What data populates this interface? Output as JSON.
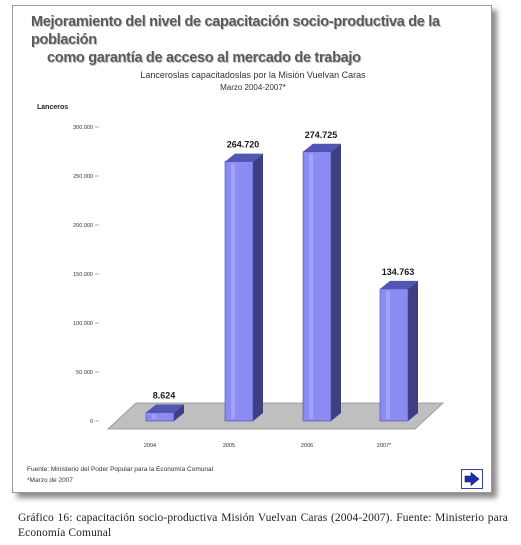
{
  "figure": {
    "title_line1": "Mejoramiento del nivel de capacitación socio-productiva de la   población",
    "title_line2": "como garantía de acceso al mercado de trabajo",
    "source_line1": "Fuente: Ministerio del Poder Popular para la Economía Comunal",
    "source_line2": "*Marzo de 2007",
    "next_icon": "right-arrow-icon",
    "caption": "Gráfico 16: capacitación socio-productiva Misión Vuelvan Caras (2004-2007). Fuente: Ministerio para Economía Comunal"
  },
  "chart_data": {
    "type": "bar",
    "title": "Lanceroslas capacitadoslas por la Misión Vuelvan Caras",
    "subtitle": "Marzo 2004-2007*",
    "ylabel": "Lanceros",
    "categories": [
      "2004",
      "2005",
      "2006",
      "2007*"
    ],
    "values": [
      8624,
      264720,
      274725,
      134763
    ],
    "value_labels": [
      "8.624",
      "264.720",
      "274.725",
      "134.763"
    ],
    "yticks": [
      0,
      50000,
      100000,
      150000,
      200000,
      250000,
      300000
    ],
    "ytick_labels": [
      "0",
      "50.000",
      "100.000",
      "150.000",
      "200.000",
      "250.000",
      "300.000"
    ],
    "ylim": [
      0,
      300000
    ],
    "grid": false,
    "colors": {
      "bar_front": "#8b8cf2",
      "bar_side": "#3d3f80",
      "bar_top": "#5355b3",
      "floor": "#bfbfbf",
      "floor_edge": "#8f8f8f",
      "value_label": "#1a1a1a"
    }
  }
}
